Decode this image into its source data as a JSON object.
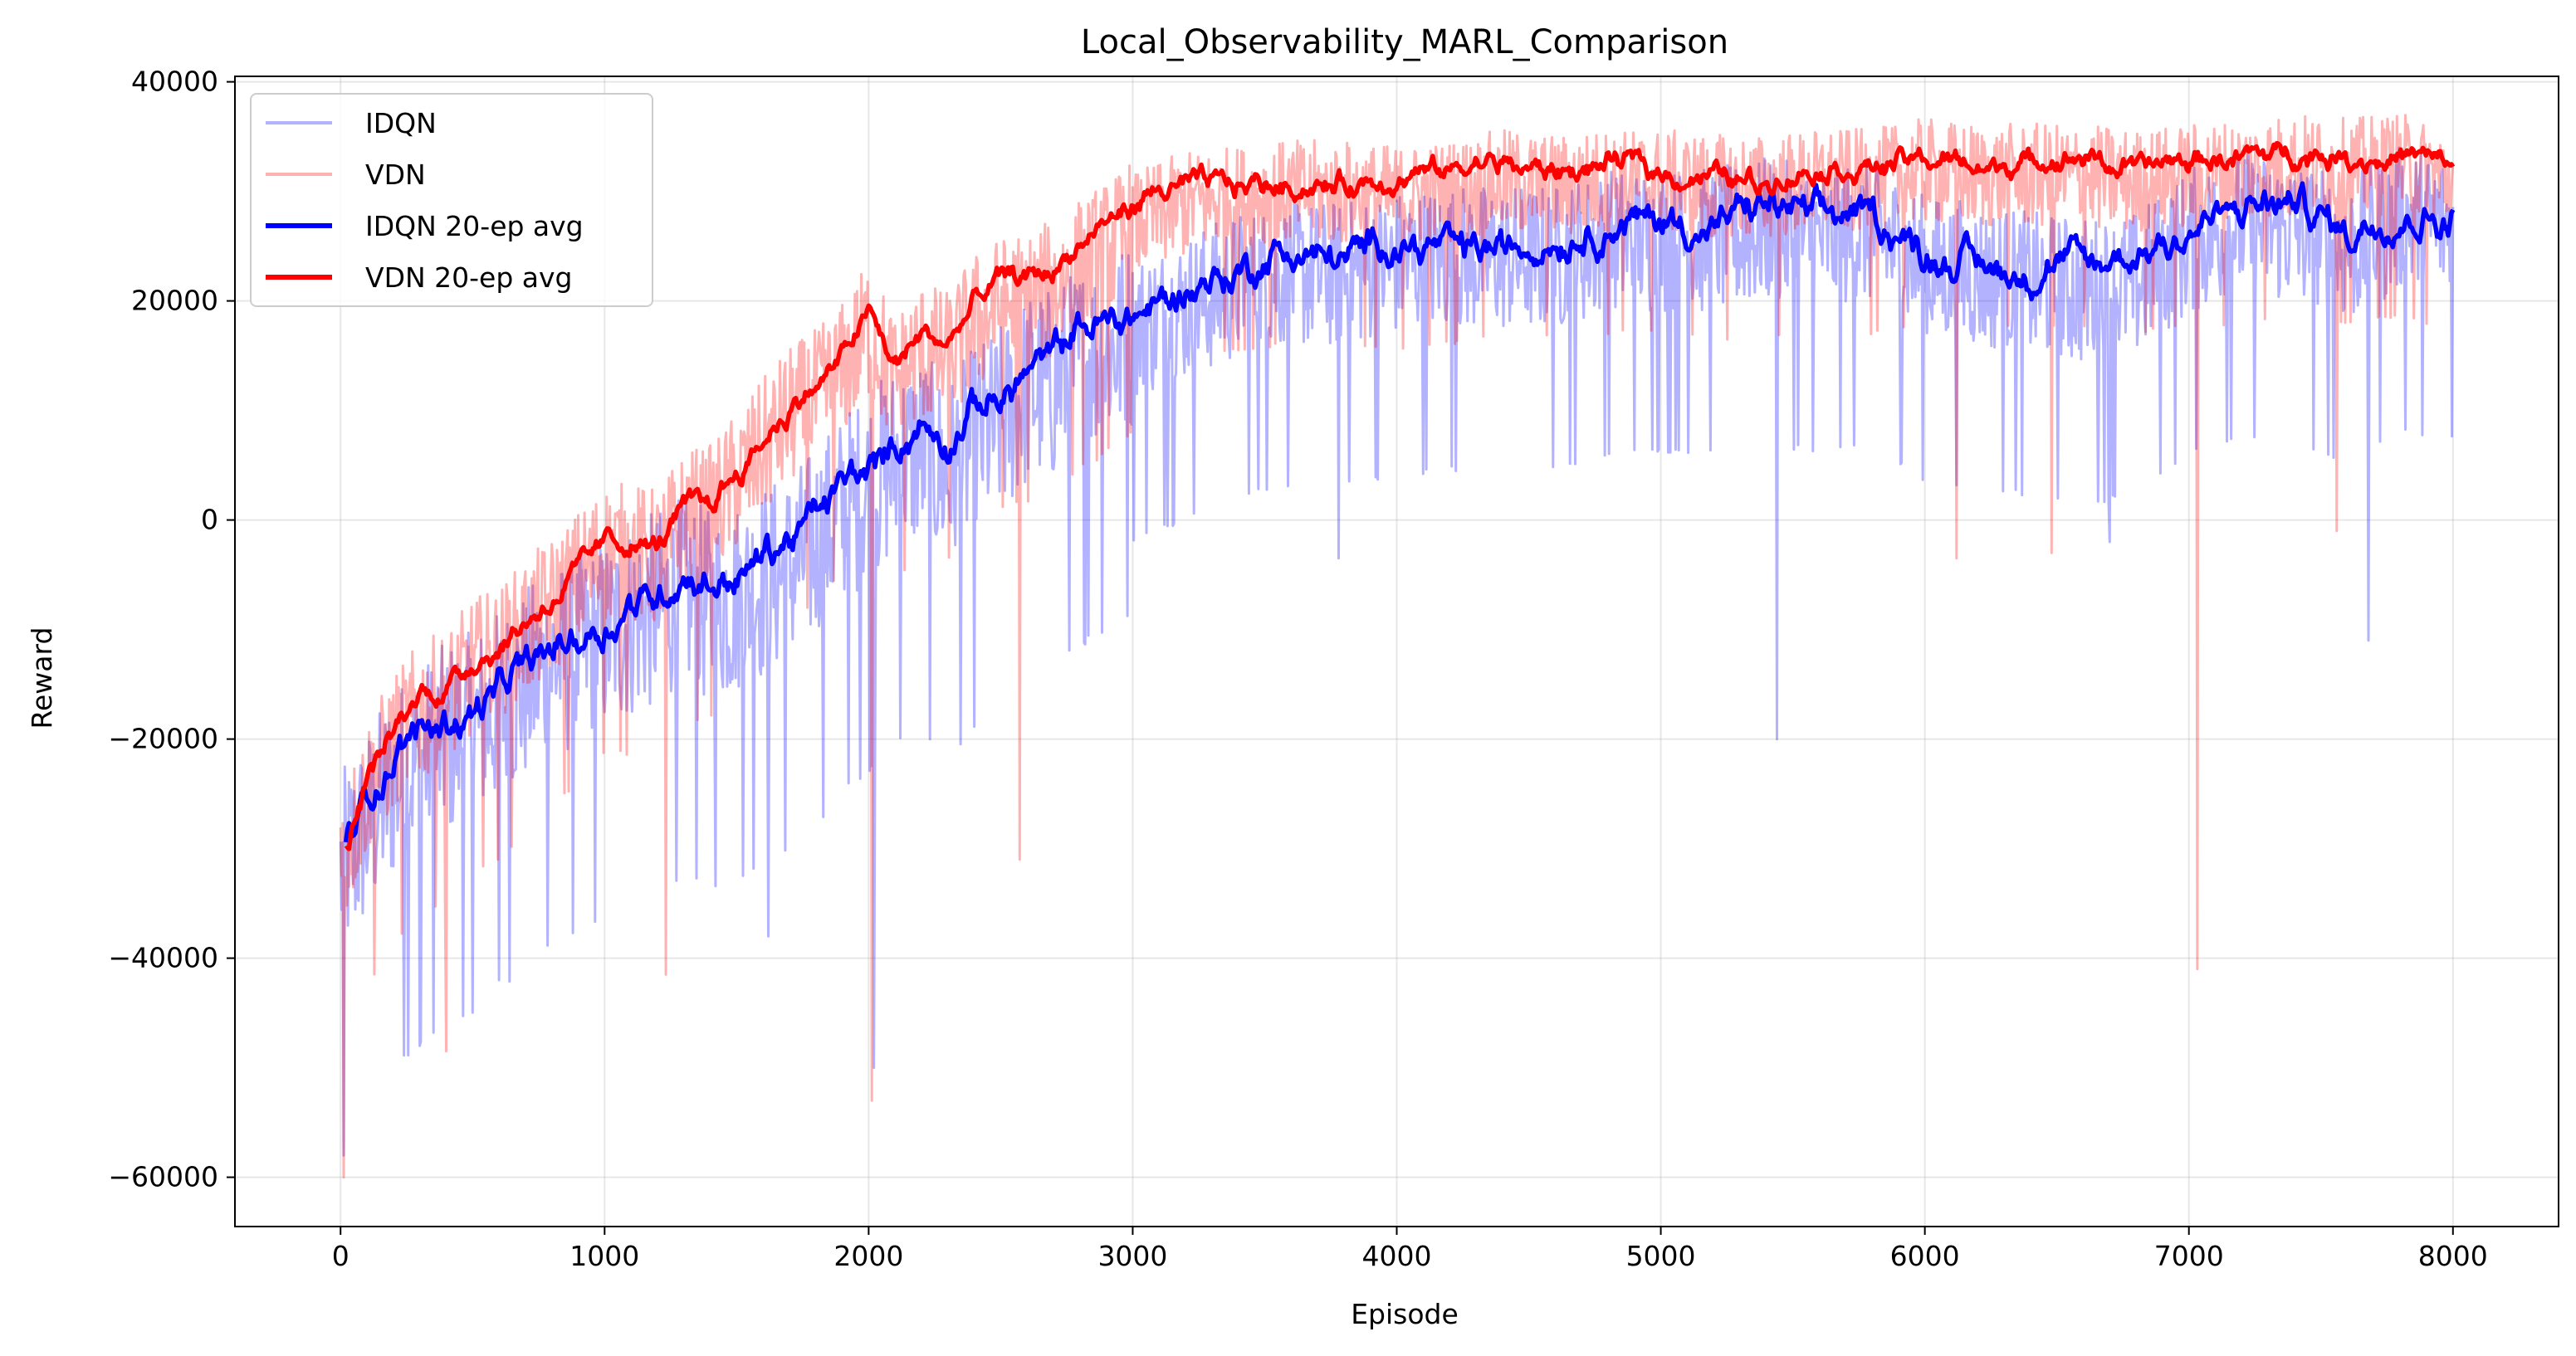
{
  "chart_data": {
    "type": "line",
    "title": "Local_Observability_MARL_Comparison",
    "xlabel": "Episode",
    "ylabel": "Reward",
    "xlim": [
      -400,
      8400
    ],
    "ylim": [
      -64500,
      40500
    ],
    "xticks": [
      0,
      1000,
      2000,
      3000,
      4000,
      5000,
      6000,
      7000,
      8000
    ],
    "yticks": [
      -60000,
      -40000,
      -20000,
      0,
      20000,
      40000
    ],
    "grid": true,
    "legend_position": "top-left",
    "series": [
      {
        "name": "IDQN",
        "color": "#0000ff",
        "opacity": 0.3,
        "kind": "raw",
        "x": [
          0,
          100,
          200,
          300,
          400,
          500,
          600,
          700,
          800,
          900,
          1000,
          1100,
          1200,
          1300,
          1400,
          1500,
          1600,
          1700,
          1800,
          1900,
          2000,
          2100,
          2200,
          2300,
          2400,
          2500,
          2600,
          2700,
          2800,
          2900,
          3000,
          3200,
          3400,
          3600,
          3800,
          4000,
          4200,
          4400,
          4600,
          4800,
          5000,
          5200,
          5400,
          5600,
          5800,
          6000,
          6200,
          6400,
          6600,
          6800,
          7000,
          7200,
          7400,
          7600,
          7800,
          8000
        ],
        "y": [
          -30000,
          -26000,
          -22000,
          -20000,
          -18000,
          -17000,
          -15000,
          -13000,
          -11000,
          -10000,
          -8500,
          -7000,
          -6000,
          -4500,
          -6000,
          -5000,
          -3500,
          -2500,
          0,
          3000,
          5000,
          7500,
          8500,
          6000,
          9000,
          11000,
          14000,
          14500,
          16500,
          17500,
          19000,
          21000,
          23000,
          24000,
          24000,
          25000,
          25500,
          25500,
          25500,
          27000,
          27000,
          27000,
          28000,
          27000,
          28000,
          24500,
          24000,
          23000,
          22500,
          23000,
          27000,
          28500,
          28000,
          26000,
          29000,
          28500
        ],
        "noise": 14000,
        "outliers": [
          [
            10,
            -58000
          ],
          [
            300,
            -48000
          ],
          [
            600,
            -42000
          ],
          [
            1620,
            -38000
          ],
          [
            2020,
            -50000
          ],
          [
            3780,
            -3500
          ],
          [
            5440,
            -20000
          ],
          [
            6700,
            -2000
          ],
          [
            7680,
            -11000
          ]
        ]
      },
      {
        "name": "VDN",
        "color": "#ff0000",
        "opacity": 0.3,
        "kind": "raw",
        "x": [
          0,
          100,
          200,
          300,
          400,
          500,
          600,
          700,
          800,
          900,
          1000,
          1100,
          1200,
          1300,
          1400,
          1500,
          1600,
          1700,
          1800,
          1900,
          2000,
          2100,
          2200,
          2300,
          2400,
          2500,
          2600,
          2700,
          2800,
          2900,
          3000,
          3200,
          3400,
          3600,
          3800,
          4000,
          4200,
          4400,
          4600,
          4800,
          5000,
          5200,
          5400,
          5600,
          5800,
          6000,
          6200,
          6400,
          6600,
          6800,
          7000,
          7200,
          7400,
          7600,
          7800,
          8000
        ],
        "y": [
          -30000,
          -23000,
          -19000,
          -16000,
          -15000,
          -12000,
          -11000,
          -8500,
          -6500,
          -4000,
          -1500,
          -1500,
          -2000,
          1500,
          2000,
          5000,
          8000,
          11000,
          12500,
          15000,
          19000,
          14000,
          17000,
          16000,
          19500,
          21000,
          21500,
          22500,
          24500,
          26000,
          28000,
          30000,
          30500,
          31000,
          31000,
          30500,
          31000,
          32000,
          31500,
          32000,
          32000,
          31500,
          31500,
          32000,
          32000,
          33000,
          32500,
          32500,
          32500,
          32000,
          32500,
          33000,
          33500,
          33000,
          33500,
          32000
        ],
        "noise": 10000,
        "outliers": [
          [
            10,
            -60000
          ],
          [
            400,
            -48500
          ],
          [
            1230,
            -41500
          ],
          [
            2010,
            -53000
          ],
          [
            2570,
            -31000
          ],
          [
            6120,
            -3500
          ],
          [
            6480,
            -3000
          ],
          [
            7030,
            -41000
          ],
          [
            7560,
            -1000
          ]
        ]
      },
      {
        "name": "IDQN 20-ep avg",
        "color": "#0000ff",
        "opacity": 1,
        "kind": "avg",
        "x": [
          20,
          100,
          200,
          300,
          400,
          500,
          600,
          700,
          800,
          900,
          1000,
          1100,
          1200,
          1300,
          1400,
          1500,
          1600,
          1700,
          1800,
          1900,
          2000,
          2100,
          2200,
          2300,
          2400,
          2500,
          2600,
          2700,
          2800,
          2900,
          3000,
          3200,
          3400,
          3600,
          3800,
          4000,
          4200,
          4400,
          4600,
          4800,
          5000,
          5200,
          5400,
          5600,
          5800,
          6000,
          6200,
          6400,
          6600,
          6800,
          7000,
          7200,
          7400,
          7600,
          7800,
          8000
        ],
        "y": [
          -30000,
          -26000,
          -22000,
          -20000,
          -18000,
          -17000,
          -15000,
          -13000,
          -11000,
          -10000,
          -8500,
          -7000,
          -6000,
          -4500,
          -6000,
          -5000,
          -3500,
          -2500,
          0,
          3000,
          5000,
          7500,
          8500,
          6000,
          9000,
          11000,
          14000,
          14500,
          16500,
          17500,
          19000,
          21000,
          23000,
          24000,
          24000,
          25000,
          25500,
          25500,
          25500,
          27000,
          27000,
          27000,
          28000,
          27000,
          28000,
          24500,
          24000,
          23000,
          22500,
          23000,
          27000,
          28500,
          28000,
          26000,
          29000,
          28500
        ],
        "noise": 1800
      },
      {
        "name": "VDN 20-ep avg",
        "color": "#ff0000",
        "opacity": 1,
        "kind": "avg",
        "x": [
          20,
          100,
          200,
          300,
          400,
          500,
          600,
          700,
          800,
          900,
          1000,
          1100,
          1200,
          1300,
          1400,
          1500,
          1600,
          1700,
          1800,
          1900,
          2000,
          2100,
          2200,
          2300,
          2400,
          2500,
          2600,
          2700,
          2800,
          2900,
          3000,
          3200,
          3400,
          3600,
          3800,
          4000,
          4200,
          4400,
          4600,
          4800,
          5000,
          5200,
          5400,
          5600,
          5800,
          6000,
          6200,
          6400,
          6600,
          6800,
          7000,
          7200,
          7400,
          7600,
          7800,
          8000
        ],
        "y": [
          -30000,
          -23000,
          -19000,
          -16000,
          -15000,
          -12000,
          -11000,
          -8500,
          -6500,
          -4000,
          -1500,
          -1500,
          -2000,
          1500,
          2000,
          5000,
          8000,
          11000,
          12500,
          15000,
          19000,
          14000,
          17000,
          16000,
          19500,
          21000,
          21500,
          22500,
          24500,
          26000,
          28000,
          30000,
          30500,
          31000,
          31000,
          30500,
          31000,
          32000,
          31500,
          32000,
          32000,
          31500,
          31500,
          32000,
          32000,
          33000,
          32500,
          32500,
          32500,
          32000,
          32500,
          33000,
          33500,
          33000,
          33500,
          32000
        ],
        "noise": 1200
      }
    ]
  }
}
